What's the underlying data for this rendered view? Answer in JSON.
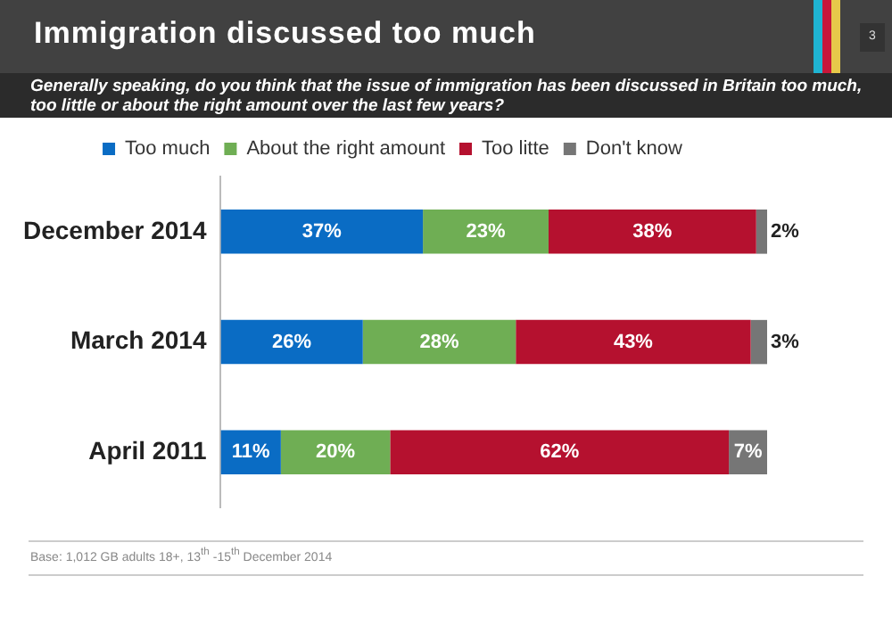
{
  "chart_data": {
    "type": "bar",
    "orientation": "horizontal",
    "stacked": true,
    "title": "Immigration discussed too much",
    "subtitle": "Generally speaking, do you think that the issue of immigration has been discussed in Britain too much, too little or about the right amount over the last few years?",
    "categories": [
      "December 2014",
      "March 2014",
      "April 2011"
    ],
    "series": [
      {
        "name": "Too much",
        "color": "#0a6cc4",
        "values": [
          37,
          26,
          11
        ],
        "value_labels": [
          "37%",
          "26%",
          "11%"
        ]
      },
      {
        "name": "About the right amount",
        "color": "#6fae54",
        "values": [
          23,
          28,
          20
        ],
        "value_labels": [
          "23%",
          "28%",
          "20%"
        ]
      },
      {
        "name": "Too litte",
        "color": "#b5112f",
        "values": [
          38,
          43,
          62
        ],
        "value_labels": [
          "38%",
          "43%",
          "62%"
        ]
      },
      {
        "name": "Don't know",
        "color": "#767676",
        "values": [
          2,
          3,
          7
        ],
        "value_labels": [
          "2%",
          "3%",
          "7%"
        ]
      }
    ],
    "xlim": [
      0,
      100
    ],
    "tick_labels": "y",
    "grid": false,
    "legend": "top",
    "annotations": [
      "3",
      "Base: 1,012 GB adults 18+, 13$^{th}$ -15$^{th}$ December 2014"
    ]
  }
}
